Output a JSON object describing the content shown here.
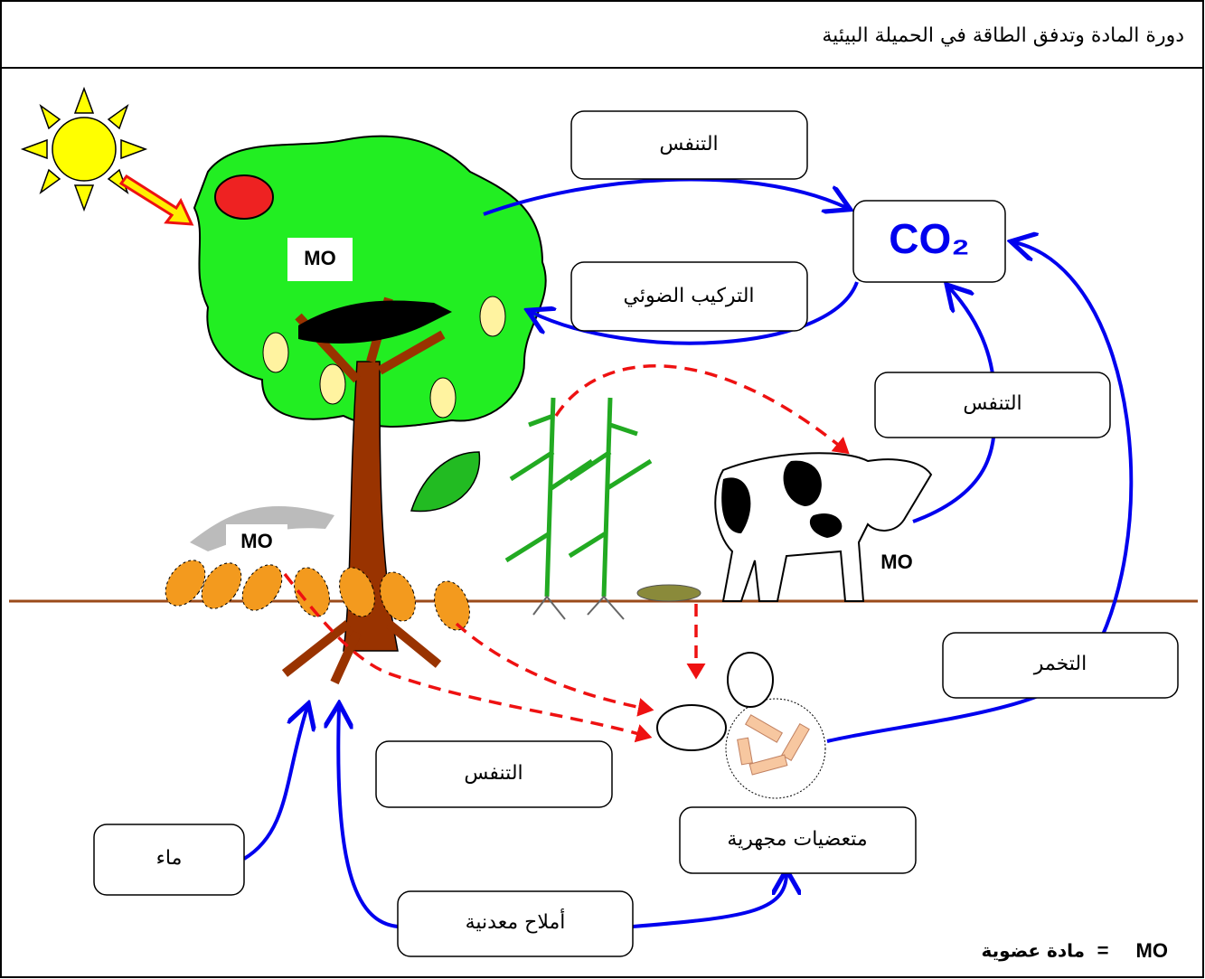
{
  "title": "دورة المادة وتدفق الطاقة في الحميلة البيئية",
  "boxes": {
    "respiration_top": "التنفس",
    "photosynthesis": "التركيب الضوئي",
    "co2": "CO₂",
    "respiration_cow": "التنفس",
    "fermentation": "التخمر",
    "respiration_bottom": "التنفس",
    "microorganisms": "متعضيات مجهرية",
    "water": "ماء",
    "mineral_salts": "أملاح معدنية"
  },
  "mo_labels": [
    "MO",
    "MO",
    "MO"
  ],
  "legend": {
    "term": "MO",
    "equals": "=",
    "meaning": "مادة عضوية"
  }
}
